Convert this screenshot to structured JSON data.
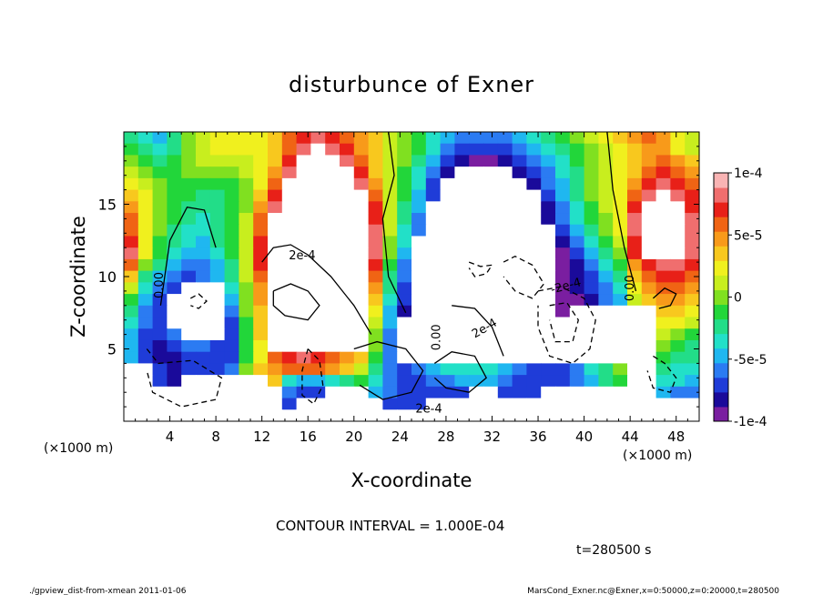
{
  "chart_data": {
    "type": "heatmap",
    "title": "disturbunce of Exner",
    "xlabel": "X-coordinate",
    "ylabel": "Z-coordinate",
    "x_unit": "(×1000 m)",
    "z_unit": "(×1000 m)",
    "xlim": [
      0,
      50
    ],
    "ylim": [
      0,
      20
    ],
    "x_ticks": [
      "4",
      "8",
      "12",
      "16",
      "20",
      "24",
      "28",
      "32",
      "36",
      "40",
      "44",
      "48"
    ],
    "x_tick_values": [
      4,
      8,
      12,
      16,
      20,
      24,
      28,
      32,
      36,
      40,
      44,
      48
    ],
    "y_ticks": [
      "5",
      "10",
      "15"
    ],
    "y_tick_values": [
      5,
      10,
      15
    ],
    "colorbar": {
      "range": [
        -0.0001,
        0.0001
      ],
      "tick_labels": [
        "1e-4",
        "5e-5",
        "0",
        "-5e-5",
        "-1e-4"
      ],
      "tick_values": [
        0.0001,
        5e-05,
        0,
        -5e-05,
        -0.0001
      ],
      "colors": [
        "#7a1ea0",
        "#1a0a9a",
        "#1f3cd8",
        "#2b7bf2",
        "#1fb7f0",
        "#22e0c8",
        "#22dd88",
        "#22d63a",
        "#80e020",
        "#c8ee1e",
        "#f0f01e",
        "#f8c81e",
        "#f89a1a",
        "#f06414",
        "#e82018",
        "#f06e6e",
        "#f9b4b4"
      ]
    },
    "contour_interval": "CONTOUR INTERVAL = 1.000E-04",
    "contour_labels": [
      "0.00",
      "2e-4",
      "-2e-4",
      "0.00",
      "2e-4",
      "2e-4",
      "0.00"
    ],
    "time_label": "t=280500 s",
    "cells_z_top_to_bottom": [
      [
        6,
        5,
        4,
        6,
        8,
        9,
        10,
        10,
        10,
        10,
        11,
        13,
        14,
        15,
        14,
        13,
        12,
        11,
        9,
        8,
        7,
        5,
        4,
        3,
        3,
        3,
        3,
        4,
        5,
        6,
        7,
        8,
        9,
        10,
        11,
        12,
        13,
        12,
        10,
        9
      ],
      [
        7,
        6,
        5,
        6,
        8,
        9,
        10,
        10,
        10,
        10,
        11,
        13,
        15,
        16,
        15,
        14,
        12,
        11,
        9,
        8,
        7,
        5,
        3,
        2,
        2,
        2,
        2,
        3,
        4,
        5,
        6,
        7,
        8,
        9,
        10,
        11,
        12,
        12,
        10,
        9
      ],
      [
        8,
        7,
        6,
        7,
        8,
        9,
        9,
        9,
        9,
        10,
        11,
        14,
        16,
        16,
        16,
        15,
        13,
        11,
        9,
        8,
        6,
        4,
        2,
        1,
        0,
        0,
        1,
        2,
        3,
        4,
        5,
        7,
        8,
        9,
        10,
        11,
        12,
        13,
        12,
        11
      ],
      [
        9,
        8,
        7,
        7,
        8,
        8,
        8,
        8,
        9,
        10,
        12,
        15,
        16,
        16,
        16,
        16,
        14,
        11,
        9,
        7,
        5,
        3,
        1,
        16,
        16,
        16,
        16,
        1,
        2,
        3,
        5,
        6,
        8,
        9,
        10,
        11,
        13,
        14,
        13,
        12
      ],
      [
        10,
        9,
        8,
        7,
        7,
        7,
        7,
        7,
        8,
        10,
        13,
        16,
        16,
        16,
        16,
        16,
        15,
        12,
        9,
        7,
        5,
        2,
        16,
        16,
        16,
        16,
        16,
        16,
        1,
        3,
        4,
        6,
        8,
        9,
        10,
        12,
        14,
        15,
        14,
        13
      ],
      [
        11,
        10,
        8,
        7,
        7,
        6,
        6,
        7,
        8,
        11,
        14,
        16,
        16,
        16,
        16,
        16,
        16,
        13,
        9,
        7,
        4,
        2,
        16,
        16,
        16,
        16,
        16,
        16,
        16,
        2,
        4,
        6,
        8,
        9,
        10,
        13,
        15,
        16,
        15,
        14
      ],
      [
        12,
        10,
        8,
        7,
        6,
        6,
        6,
        7,
        8,
        12,
        15,
        16,
        16,
        16,
        16,
        16,
        16,
        14,
        9,
        6,
        4,
        16,
        16,
        16,
        16,
        16,
        16,
        16,
        16,
        1,
        3,
        5,
        7,
        9,
        10,
        14,
        16,
        16,
        16,
        14
      ],
      [
        13,
        10,
        8,
        7,
        6,
        5,
        6,
        7,
        9,
        13,
        16,
        16,
        16,
        16,
        16,
        16,
        16,
        14,
        9,
        6,
        3,
        16,
        16,
        16,
        16,
        16,
        16,
        16,
        16,
        1,
        3,
        5,
        7,
        8,
        10,
        15,
        16,
        16,
        16,
        15
      ],
      [
        13,
        10,
        8,
        6,
        5,
        5,
        6,
        7,
        9,
        13,
        16,
        16,
        16,
        16,
        16,
        16,
        16,
        15,
        9,
        5,
        3,
        16,
        16,
        16,
        16,
        16,
        16,
        16,
        16,
        16,
        2,
        4,
        6,
        8,
        10,
        15,
        16,
        16,
        16,
        15
      ],
      [
        14,
        10,
        7,
        6,
        5,
        4,
        6,
        7,
        9,
        14,
        16,
        16,
        16,
        16,
        16,
        16,
        16,
        15,
        8,
        5,
        16,
        16,
        16,
        16,
        16,
        16,
        16,
        16,
        16,
        16,
        1,
        3,
        5,
        7,
        9,
        14,
        16,
        16,
        16,
        15
      ],
      [
        15,
        10,
        7,
        5,
        4,
        4,
        5,
        7,
        9,
        14,
        16,
        16,
        16,
        16,
        16,
        16,
        16,
        15,
        8,
        4,
        16,
        16,
        16,
        16,
        16,
        16,
        16,
        16,
        16,
        16,
        0,
        2,
        4,
        6,
        8,
        14,
        16,
        16,
        16,
        15
      ],
      [
        13,
        8,
        6,
        4,
        3,
        3,
        4,
        6,
        9,
        14,
        16,
        16,
        16,
        16,
        16,
        16,
        16,
        14,
        7,
        3,
        16,
        16,
        16,
        16,
        16,
        16,
        16,
        16,
        16,
        16,
        0,
        1,
        3,
        5,
        7,
        12,
        14,
        15,
        15,
        14
      ],
      [
        11,
        6,
        4,
        3,
        2,
        3,
        4,
        6,
        9,
        13,
        16,
        16,
        16,
        16,
        16,
        16,
        16,
        13,
        6,
        3,
        16,
        16,
        16,
        16,
        16,
        16,
        16,
        16,
        16,
        16,
        0,
        1,
        2,
        4,
        6,
        11,
        13,
        14,
        14,
        13
      ],
      [
        9,
        5,
        3,
        2,
        16,
        16,
        16,
        5,
        8,
        12,
        16,
        16,
        16,
        16,
        16,
        16,
        16,
        12,
        6,
        2,
        16,
        16,
        16,
        16,
        16,
        16,
        16,
        16,
        16,
        16,
        0,
        1,
        2,
        3,
        5,
        10,
        12,
        13,
        13,
        12
      ],
      [
        7,
        4,
        2,
        16,
        16,
        16,
        16,
        4,
        8,
        12,
        16,
        16,
        16,
        16,
        16,
        16,
        16,
        11,
        5,
        2,
        16,
        16,
        16,
        16,
        16,
        16,
        16,
        16,
        16,
        16,
        0,
        0,
        1,
        3,
        4,
        9,
        11,
        12,
        12,
        11
      ],
      [
        6,
        3,
        2,
        16,
        16,
        16,
        16,
        3,
        8,
        11,
        16,
        16,
        16,
        16,
        16,
        16,
        16,
        10,
        4,
        1,
        16,
        16,
        16,
        16,
        16,
        16,
        16,
        16,
        16,
        16,
        0,
        16,
        16,
        16,
        16,
        16,
        16,
        11,
        11,
        10
      ],
      [
        5,
        3,
        2,
        16,
        16,
        16,
        16,
        2,
        7,
        11,
        16,
        16,
        16,
        16,
        16,
        16,
        16,
        9,
        4,
        16,
        16,
        16,
        16,
        16,
        16,
        16,
        16,
        16,
        16,
        16,
        16,
        16,
        16,
        16,
        16,
        16,
        16,
        10,
        10,
        9
      ],
      [
        4,
        2,
        2,
        3,
        16,
        16,
        16,
        2,
        7,
        11,
        16,
        16,
        16,
        16,
        16,
        16,
        16,
        8,
        3,
        16,
        16,
        16,
        16,
        16,
        16,
        16,
        16,
        16,
        16,
        16,
        16,
        16,
        16,
        16,
        16,
        16,
        16,
        9,
        8,
        7
      ],
      [
        4,
        2,
        1,
        2,
        3,
        3,
        2,
        2,
        7,
        10,
        16,
        16,
        16,
        16,
        16,
        16,
        16,
        8,
        3,
        16,
        16,
        16,
        16,
        16,
        16,
        16,
        16,
        16,
        16,
        16,
        16,
        16,
        16,
        16,
        16,
        16,
        16,
        8,
        7,
        6
      ],
      [
        4,
        2,
        1,
        1,
        2,
        2,
        2,
        2,
        7,
        10,
        13,
        14,
        15,
        14,
        13,
        12,
        11,
        7,
        3,
        16,
        16,
        16,
        16,
        16,
        16,
        16,
        16,
        16,
        16,
        16,
        16,
        16,
        16,
        16,
        16,
        16,
        16,
        7,
        6,
        6
      ],
      [
        16,
        16,
        2,
        1,
        2,
        2,
        2,
        3,
        8,
        11,
        12,
        13,
        13,
        13,
        12,
        11,
        9,
        6,
        3,
        2,
        3,
        4,
        5,
        5,
        5,
        5,
        4,
        3,
        2,
        2,
        2,
        3,
        5,
        6,
        8,
        16,
        16,
        6,
        5,
        5
      ],
      [
        16,
        16,
        2,
        1,
        16,
        16,
        16,
        16,
        16,
        16,
        11,
        5,
        4,
        4,
        5,
        6,
        7,
        5,
        3,
        2,
        2,
        3,
        3,
        4,
        4,
        4,
        3,
        2,
        2,
        2,
        2,
        3,
        4,
        6,
        7,
        16,
        16,
        5,
        5,
        4
      ],
      [
        16,
        16,
        16,
        16,
        16,
        16,
        16,
        16,
        16,
        16,
        16,
        3,
        2,
        2,
        16,
        16,
        16,
        4,
        3,
        2,
        2,
        2,
        2,
        2,
        16,
        16,
        2,
        2,
        2,
        16,
        16,
        16,
        16,
        16,
        16,
        16,
        16,
        4,
        3,
        3
      ],
      [
        16,
        16,
        16,
        16,
        16,
        16,
        16,
        16,
        16,
        16,
        16,
        2,
        16,
        16,
        16,
        16,
        16,
        16,
        2,
        2,
        2,
        16,
        16,
        16,
        16,
        16,
        16,
        16,
        16,
        16,
        16,
        16,
        16,
        16,
        16,
        16,
        16,
        16,
        16,
        16
      ],
      [
        16,
        16,
        16,
        16,
        16,
        16,
        16,
        16,
        16,
        16,
        16,
        16,
        16,
        16,
        16,
        16,
        16,
        16,
        16,
        16,
        16,
        16,
        16,
        16,
        16,
        16,
        16,
        16,
        16,
        16,
        16,
        16,
        16,
        16,
        16,
        16,
        16,
        16,
        16,
        16
      ]
    ]
  },
  "footer": {
    "left": "./gpview_dist-from-xmean   2011-01-06",
    "right": "MarsCond_Exner.nc@Exner,x=0:50000,z=0:20000,t=280500"
  }
}
